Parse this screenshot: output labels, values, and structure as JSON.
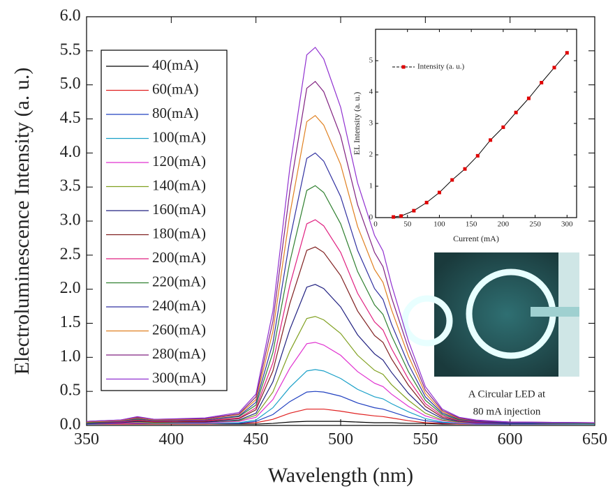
{
  "chart_data": [
    {
      "type": "line",
      "xlabel": "Wavelength (nm)",
      "ylabel": "Electroluminescence Intensity (a. u.)",
      "x": [
        350,
        370,
        380,
        390,
        420,
        440,
        450,
        460,
        470,
        480,
        485,
        490,
        500,
        510,
        520,
        525,
        530,
        540,
        550,
        560,
        570,
        580,
        600,
        650
      ],
      "xlim": [
        350,
        650
      ],
      "xticks": [
        350,
        400,
        450,
        500,
        550,
        600,
        650
      ],
      "ylim": [
        0,
        6
      ],
      "yticks": [
        {
          "value": 0,
          "label": "0.0"
        },
        0.5,
        {
          "value": 1,
          "label": "1.0"
        },
        1.5,
        {
          "value": 2,
          "label": "2.0"
        },
        2.5,
        {
          "value": 3,
          "label": "3.0"
        },
        3.5,
        {
          "value": 4,
          "label": "4.0"
        },
        4.5,
        {
          "value": 5,
          "label": "5.0"
        },
        5.5,
        {
          "value": 6,
          "label": "6.0"
        }
      ],
      "legend": "upper left",
      "series": [
        {
          "name": "40(mA)",
          "color": "#000000",
          "values": [
            0.02,
            0.02,
            0.02,
            0.02,
            0.02,
            0.02,
            0.02,
            0.03,
            0.05,
            0.06,
            0.06,
            0.06,
            0.06,
            0.05,
            0.04,
            0.04,
            0.04,
            0.03,
            0.03,
            0.02,
            0.02,
            0.02,
            0.02,
            0.02
          ]
        },
        {
          "name": "60(mA)",
          "color": "#e02020",
          "values": [
            0.02,
            0.02,
            0.02,
            0.02,
            0.02,
            0.03,
            0.04,
            0.09,
            0.18,
            0.24,
            0.24,
            0.24,
            0.21,
            0.17,
            0.14,
            0.13,
            0.11,
            0.07,
            0.04,
            0.03,
            0.02,
            0.02,
            0.02,
            0.02
          ]
        },
        {
          "name": "80(mA)",
          "color": "#2040c0",
          "values": [
            0.02,
            0.03,
            0.03,
            0.03,
            0.03,
            0.03,
            0.06,
            0.16,
            0.35,
            0.49,
            0.5,
            0.49,
            0.43,
            0.33,
            0.26,
            0.24,
            0.2,
            0.12,
            0.07,
            0.04,
            0.03,
            0.02,
            0.02,
            0.02
          ]
        },
        {
          "name": "100(mA)",
          "color": "#1aa0c8",
          "values": [
            0.03,
            0.03,
            0.04,
            0.03,
            0.03,
            0.04,
            0.08,
            0.26,
            0.56,
            0.8,
            0.82,
            0.8,
            0.69,
            0.53,
            0.42,
            0.39,
            0.32,
            0.2,
            0.1,
            0.05,
            0.03,
            0.03,
            0.03,
            0.02
          ]
        },
        {
          "name": "120(mA)",
          "color": "#e030d0",
          "values": [
            0.03,
            0.03,
            0.04,
            0.04,
            0.04,
            0.06,
            0.12,
            0.38,
            0.84,
            1.2,
            1.22,
            1.18,
            1.03,
            0.79,
            0.62,
            0.57,
            0.46,
            0.28,
            0.14,
            0.07,
            0.04,
            0.03,
            0.03,
            0.03
          ]
        },
        {
          "name": "140(mA)",
          "color": "#80a020",
          "values": [
            0.03,
            0.04,
            0.05,
            0.04,
            0.05,
            0.07,
            0.15,
            0.49,
            1.09,
            1.57,
            1.6,
            1.55,
            1.35,
            1.03,
            0.81,
            0.75,
            0.6,
            0.37,
            0.18,
            0.08,
            0.05,
            0.04,
            0.03,
            0.03
          ]
        },
        {
          "name": "160(mA)",
          "color": "#202080",
          "values": [
            0.03,
            0.04,
            0.06,
            0.05,
            0.05,
            0.08,
            0.18,
            0.64,
            1.41,
            2.03,
            2.07,
            2.01,
            1.74,
            1.33,
            1.05,
            0.96,
            0.78,
            0.47,
            0.23,
            0.1,
            0.06,
            0.04,
            0.03,
            0.03
          ]
        },
        {
          "name": "180(mA)",
          "color": "#802020",
          "values": [
            0.04,
            0.05,
            0.07,
            0.05,
            0.06,
            0.1,
            0.23,
            0.8,
            1.79,
            2.57,
            2.62,
            2.54,
            2.2,
            1.68,
            1.32,
            1.22,
            0.98,
            0.59,
            0.28,
            0.12,
            0.07,
            0.05,
            0.04,
            0.03
          ]
        },
        {
          "name": "200(mA)",
          "color": "#e02080",
          "values": [
            0.04,
            0.05,
            0.08,
            0.06,
            0.07,
            0.11,
            0.26,
            0.92,
            2.06,
            2.96,
            3.02,
            2.93,
            2.54,
            1.94,
            1.52,
            1.4,
            1.13,
            0.68,
            0.32,
            0.14,
            0.07,
            0.05,
            0.04,
            0.03
          ]
        },
        {
          "name": "220(mA)",
          "color": "#308030",
          "values": [
            0.04,
            0.06,
            0.09,
            0.07,
            0.08,
            0.13,
            0.3,
            1.07,
            2.4,
            3.45,
            3.52,
            3.42,
            2.96,
            2.26,
            1.77,
            1.63,
            1.32,
            0.79,
            0.37,
            0.16,
            0.08,
            0.06,
            0.04,
            0.03
          ]
        },
        {
          "name": "240(mA)",
          "color": "#3030a0",
          "values": [
            0.05,
            0.06,
            0.1,
            0.07,
            0.08,
            0.14,
            0.34,
            1.21,
            2.73,
            3.92,
            4.0,
            3.88,
            3.36,
            2.57,
            2.01,
            1.85,
            1.49,
            0.9,
            0.42,
            0.18,
            0.09,
            0.06,
            0.04,
            0.04
          ]
        },
        {
          "name": "260(mA)",
          "color": "#e08020",
          "values": [
            0.05,
            0.07,
            0.11,
            0.08,
            0.09,
            0.16,
            0.38,
            1.38,
            3.1,
            4.46,
            4.55,
            4.41,
            3.83,
            2.92,
            2.29,
            2.1,
            1.7,
            1.02,
            0.47,
            0.2,
            0.1,
            0.07,
            0.05,
            0.04
          ]
        },
        {
          "name": "280(mA)",
          "color": "#802080",
          "values": [
            0.06,
            0.08,
            0.12,
            0.09,
            0.1,
            0.17,
            0.42,
            1.53,
            3.44,
            4.95,
            5.05,
            4.9,
            4.25,
            3.24,
            2.54,
            2.33,
            1.88,
            1.13,
            0.52,
            0.22,
            0.11,
            0.07,
            0.05,
            0.04
          ]
        },
        {
          "name": "300(mA)",
          "color": "#9030d0",
          "values": [
            0.06,
            0.08,
            0.13,
            0.09,
            0.11,
            0.19,
            0.46,
            1.68,
            3.78,
            5.44,
            5.55,
            5.38,
            4.67,
            3.56,
            2.79,
            2.56,
            2.07,
            1.24,
            0.57,
            0.24,
            0.12,
            0.08,
            0.05,
            0.04
          ]
        }
      ],
      "annotation": [
        "A Circular LED at",
        "80 mA injection"
      ]
    },
    {
      "type": "line",
      "xlabel": "Current (mA)",
      "ylabel": "EL Intensity (a. u.)",
      "x": [
        28,
        40,
        60,
        80,
        100,
        120,
        140,
        160,
        180,
        200,
        220,
        240,
        260,
        280,
        300
      ],
      "xlim": [
        0,
        315
      ],
      "xticks": [
        0,
        50,
        100,
        150,
        200,
        250,
        300
      ],
      "ylim": [
        0,
        6
      ],
      "yticks": [
        0,
        1,
        2,
        3,
        4,
        5
      ],
      "legend": "upper left",
      "series": [
        {
          "name": "Intensity (a. u.)",
          "color": "#000000",
          "marker_color": "#e00000",
          "values": [
            0.02,
            0.05,
            0.22,
            0.48,
            0.8,
            1.2,
            1.55,
            1.97,
            2.47,
            2.88,
            3.35,
            3.8,
            4.3,
            4.78,
            5.25
          ]
        }
      ]
    }
  ]
}
